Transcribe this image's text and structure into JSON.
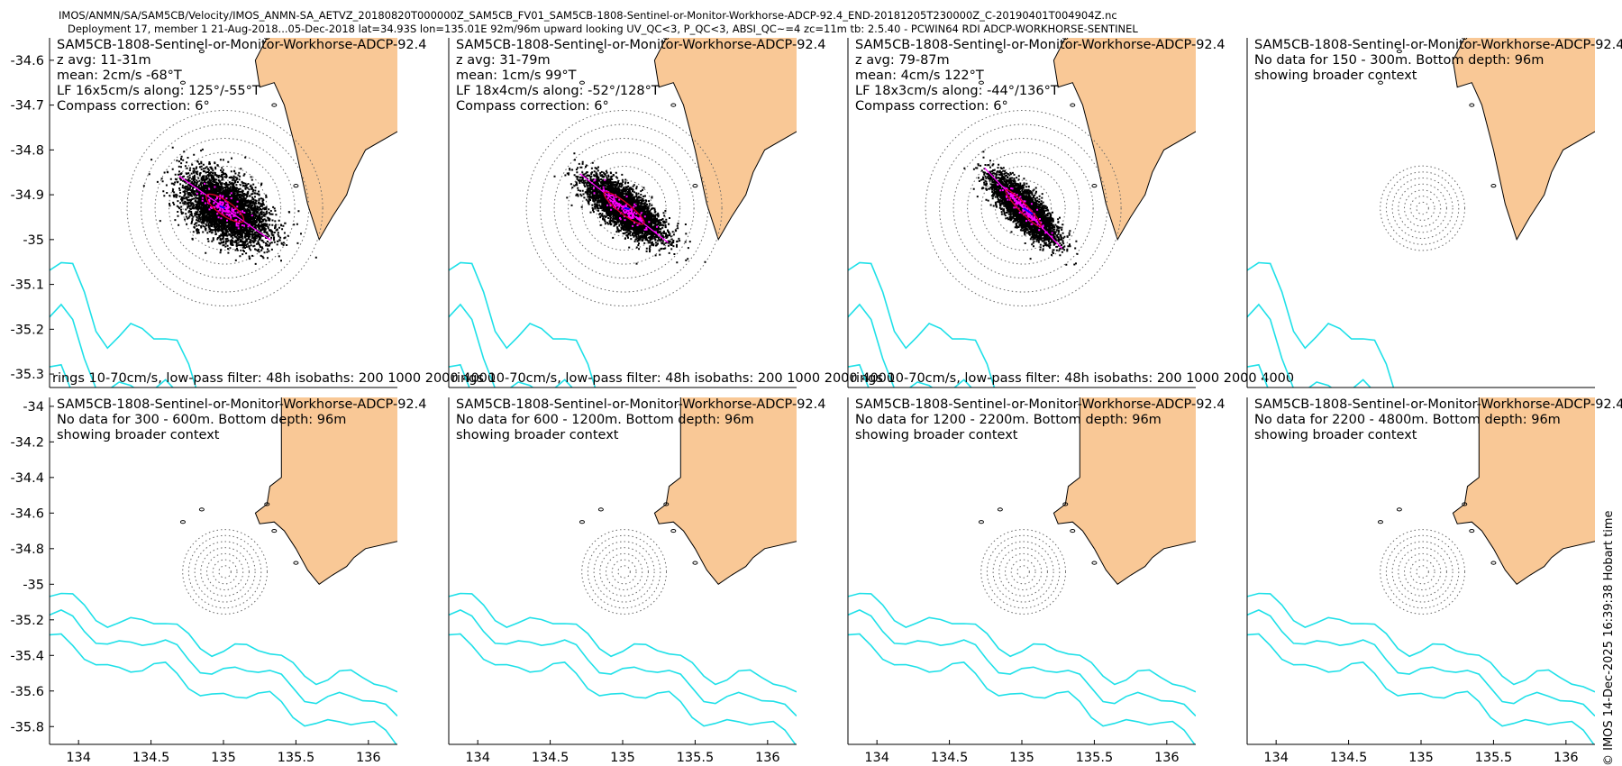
{
  "header": {
    "line1": "IMOS/ANMN/SA/SAM5CB/Velocity/IMOS_ANMN-SA_AETVZ_20180820T000000Z_SAM5CB_FV01_SAM5CB-1808-Sentinel-or-Monitor-Workhorse-ADCP-92.4_END-20181205T230000Z_C-20190401T004904Z.nc",
    "line2": "Deployment 17, member 1 21-Aug-2018...05-Dec-2018 lat=34.93S lon=135.01E 92m/96m upward looking UV_QC<3, P_QC<3, ABSI_QC~=4 zc=11m tb: 2.5.40 - PCWIN64 RDI ADCP-WORKHORSE-SENTINEL"
  },
  "footer_stamp": "© IMOS 14-Dec-2025 16:39:38 Hobart time",
  "colors": {
    "land": "#f9c896",
    "isobath": "#1fe0e8",
    "axis_major": "#ff00ff",
    "ellipse": "#d4002a",
    "mean_vector": "#0000ff",
    "scatter": "#000000",
    "rings": "#666666"
  },
  "chart_data": {
    "type": "scatter",
    "description_axes": "longitude vs latitude map panels",
    "xlim": [
      133.8,
      136.2
    ],
    "x_ticks": [
      134,
      134.5,
      135,
      135.5,
      136
    ],
    "x_tick_labels": [
      "134",
      "134.5",
      "135",
      "135.5",
      "136"
    ],
    "top_row_ylim": [
      -35.33,
      -34.55
    ],
    "top_row_y_ticks": [
      -34.6,
      -34.7,
      -34.8,
      -34.9,
      -35,
      -35.1,
      -35.2,
      -35.3
    ],
    "top_row_y_tick_labels": [
      "-34.6",
      "-34.7",
      "-34.8",
      "-34.9",
      "-35",
      "-35.1",
      "-35.2",
      "-35.3"
    ],
    "bottom_row_ylim": [
      -35.9,
      -33.95
    ],
    "bottom_row_y_ticks": [
      -34,
      -34.2,
      -34.4,
      -34.6,
      -34.8,
      -35,
      -35.2,
      -35.4,
      -35.6,
      -35.8
    ],
    "bottom_row_y_tick_labels": [
      "-34",
      "-34.2",
      "-34.4",
      "-34.6",
      "-34.8",
      "-35",
      "-35.2",
      "-35.4",
      "-35.6",
      "-35.8"
    ],
    "mooring_center": [
      135.01,
      -34.93
    ],
    "ring_speeds_cms": [
      10,
      20,
      30,
      40,
      50,
      60,
      70
    ],
    "panels": [
      {
        "id": "p1",
        "row": 0,
        "col": 0,
        "has_data": true,
        "lines": [
          "SAM5CB-1808-Sentinel-or-Monitor-Workhorse-ADCP-92.4",
          "z avg: 11-31m",
          "mean: 2cm/s -68°T",
          "LF 16x5cm/s along: 125°/-55°T",
          "Compass correction: 6°"
        ],
        "footer": "rings 10-70cm/s, low-pass filter: 48h isobaths: 200 1000 2000 4000",
        "mean_speed": 2,
        "mean_dir": -68,
        "major_axis_dir": 125,
        "lf_major": 16,
        "lf_minor": 5,
        "scatter_major_sd": 17,
        "scatter_minor_sd": 9.5,
        "scatter_n": 4200
      },
      {
        "id": "p2",
        "row": 0,
        "col": 1,
        "has_data": true,
        "lines": [
          "SAM5CB-1808-Sentinel-or-Monitor-Workhorse-ADCP-92.4",
          "z avg: 31-79m",
          "mean: 1cm/s 99°T",
          "LF 18x4cm/s along: -52°/128°T",
          "Compass correction: 6°"
        ],
        "footer": "rings 10-70cm/s, low-pass filter: 48h isobaths: 200 1000 2000 4000",
        "mean_speed": 1,
        "mean_dir": 99,
        "major_axis_dir": 128,
        "lf_major": 18,
        "lf_minor": 4,
        "scatter_major_sd": 16,
        "scatter_minor_sd": 6,
        "scatter_n": 4200
      },
      {
        "id": "p3",
        "row": 0,
        "col": 2,
        "has_data": true,
        "lines": [
          "SAM5CB-1808-Sentinel-or-Monitor-Workhorse-ADCP-92.4",
          "z avg: 79-87m",
          "mean: 4cm/s 122°T",
          "LF 18x3cm/s along: -44°/136°T",
          "Compass correction: 6°"
        ],
        "footer": "rings 10-70cm/s, low-pass filter: 48h isobaths: 200 1000 2000 4000",
        "mean_speed": 4,
        "mean_dir": 122,
        "major_axis_dir": 136,
        "lf_major": 18,
        "lf_minor": 3,
        "scatter_major_sd": 15,
        "scatter_minor_sd": 5,
        "scatter_n": 4200
      },
      {
        "id": "p4",
        "row": 0,
        "col": 3,
        "has_data": false,
        "lines": [
          "SAM5CB-1808-Sentinel-or-Monitor-Workhorse-ADCP-92.4",
          "No data for 150 - 300m. Bottom depth: 96m",
          "showing broader context"
        ]
      },
      {
        "id": "p5",
        "row": 1,
        "col": 0,
        "has_data": false,
        "lines": [
          "SAM5CB-1808-Sentinel-or-Monitor-Workhorse-ADCP-92.4",
          "No data for 300 - 600m. Bottom depth: 96m",
          "showing broader context"
        ]
      },
      {
        "id": "p6",
        "row": 1,
        "col": 1,
        "has_data": false,
        "lines": [
          "SAM5CB-1808-Sentinel-or-Monitor-Workhorse-ADCP-92.4",
          "No data for 600 - 1200m. Bottom depth: 96m",
          "showing broader context"
        ]
      },
      {
        "id": "p7",
        "row": 1,
        "col": 2,
        "has_data": false,
        "lines": [
          "SAM5CB-1808-Sentinel-or-Monitor-Workhorse-ADCP-92.4",
          "No data for 1200 - 2200m. Bottom depth: 96m",
          "showing broader context"
        ]
      },
      {
        "id": "p8",
        "row": 1,
        "col": 3,
        "has_data": false,
        "lines": [
          "SAM5CB-1808-Sentinel-or-Monitor-Workhorse-ADCP-92.4",
          "No data for 2200 - 4800m. Bottom depth: 96m",
          "showing broader context"
        ]
      }
    ]
  }
}
